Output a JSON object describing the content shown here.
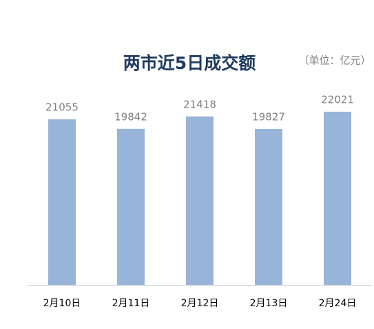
{
  "chart_data": {
    "type": "bar",
    "title": "两市近5日成交额",
    "subtitle": "（单位：亿元）",
    "categories": [
      "2月10日",
      "2月11日",
      "2月12日",
      "2月13日",
      "2月24日"
    ],
    "values": [
      21055,
      19842,
      21418,
      19827,
      22021
    ],
    "color": "#98b4d9",
    "ylim": [
      0,
      25000
    ]
  }
}
